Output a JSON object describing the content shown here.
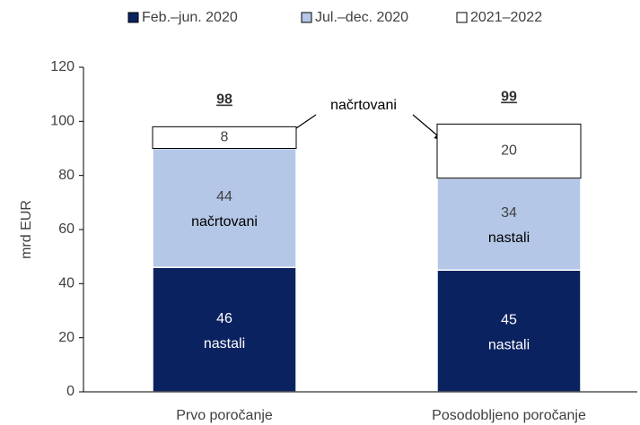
{
  "chart_data": {
    "type": "stacked_bar",
    "y_label": "mrd EUR",
    "categories": [
      "Prvo poročanje",
      "Posodobljeno poročanje"
    ],
    "series": [
      {
        "name": "Feb.–jun. 2020",
        "color": "#0b2260",
        "values": [
          46,
          45
        ],
        "notes": [
          "nastali",
          "nastali"
        ]
      },
      {
        "name": "Jul.–dec. 2020",
        "color": "#b4c7e7",
        "values": [
          44,
          34
        ],
        "notes": [
          "načrtovani",
          "nastali"
        ]
      },
      {
        "name": "2021–2022",
        "color": "#ffffff",
        "values": [
          8,
          20
        ]
      }
    ],
    "totals": [
      98,
      99
    ],
    "callout": "načrtovani",
    "ylim": [
      0,
      120
    ],
    "yticks": [
      0,
      20,
      40,
      60,
      80,
      100,
      120
    ]
  }
}
